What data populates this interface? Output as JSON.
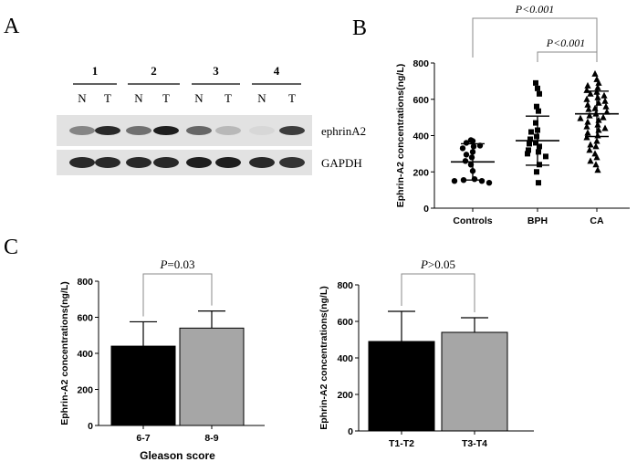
{
  "panel_labels": {
    "a": "A",
    "b": "B",
    "c": "C"
  },
  "blot": {
    "lane_groups": [
      "1",
      "2",
      "3",
      "4"
    ],
    "lane_labels": [
      "N",
      "T",
      "N",
      "T",
      "N",
      "T",
      "N",
      "T"
    ],
    "rows": [
      {
        "label": "ephrinA2",
        "intensity": [
          0.45,
          0.9,
          0.55,
          0.95,
          0.6,
          0.2,
          0.05,
          0.8
        ]
      },
      {
        "label": "GAPDH",
        "intensity": [
          0.9,
          0.9,
          0.9,
          0.9,
          0.95,
          0.95,
          0.9,
          0.85
        ]
      }
    ]
  },
  "chart_data": [
    {
      "type": "scatter",
      "ylabel": "Ephrin-A2 concentrations(ng/L)",
      "ylim": [
        0,
        800
      ],
      "yticks": [
        "0",
        "200",
        "400",
        "600",
        "800"
      ],
      "categories": [
        "Controls",
        "BPH",
        "CA"
      ],
      "series": [
        {
          "category": "Controls",
          "marker": "circle",
          "mean": 255,
          "sd": 100,
          "values": [
            375,
            370,
            360,
            345,
            340,
            330,
            310,
            295,
            280,
            260,
            240,
            205,
            160,
            155,
            150,
            150,
            140
          ]
        },
        {
          "category": "BPH",
          "marker": "square",
          "mean": 372,
          "sd": 135,
          "values": [
            690,
            660,
            630,
            560,
            535,
            470,
            430,
            420,
            395,
            380,
            360,
            355,
            340,
            320,
            310,
            300,
            285,
            240,
            200,
            140
          ]
        },
        {
          "category": "CA",
          "marker": "triangle",
          "mean": 520,
          "sd": 125,
          "values": [
            740,
            710,
            690,
            675,
            665,
            650,
            640,
            630,
            620,
            610,
            600,
            590,
            580,
            570,
            560,
            550,
            545,
            530,
            520,
            510,
            500,
            495,
            485,
            475,
            460,
            450,
            440,
            430,
            415,
            400,
            390,
            370,
            350,
            340,
            320,
            300,
            280,
            260,
            240,
            210
          ]
        }
      ],
      "annotations": [
        {
          "text": "P<0.001",
          "between": [
            "Controls",
            "CA"
          ]
        },
        {
          "text": "P<0.001",
          "between": [
            "BPH",
            "CA"
          ]
        }
      ]
    },
    {
      "type": "bar",
      "xlabel": "Gleason score",
      "ylabel": "Ephrin-A2 concentrations(ng/L)",
      "ylim": [
        0,
        800
      ],
      "yticks": [
        "0",
        "200",
        "400",
        "600",
        "800"
      ],
      "categories": [
        "6-7",
        "8-9"
      ],
      "values": [
        440,
        540
      ],
      "errors": [
        135,
        95
      ],
      "colors": [
        "#000000",
        "#a6a6a6"
      ],
      "annotation": {
        "prefix": "P",
        "rest": "=0.03"
      }
    },
    {
      "type": "bar",
      "xlabel": "",
      "ylabel": "Ephrin-A2 concentrations(ng/L)",
      "ylim": [
        0,
        800
      ],
      "yticks": [
        "0",
        "200",
        "400",
        "600",
        "800"
      ],
      "categories": [
        "T1-T2",
        "T3-T4"
      ],
      "values": [
        490,
        540
      ],
      "errors": [
        165,
        80
      ],
      "colors": [
        "#000000",
        "#a6a6a6"
      ],
      "annotation": {
        "prefix": "P",
        "rest": ">0.05"
      }
    }
  ]
}
